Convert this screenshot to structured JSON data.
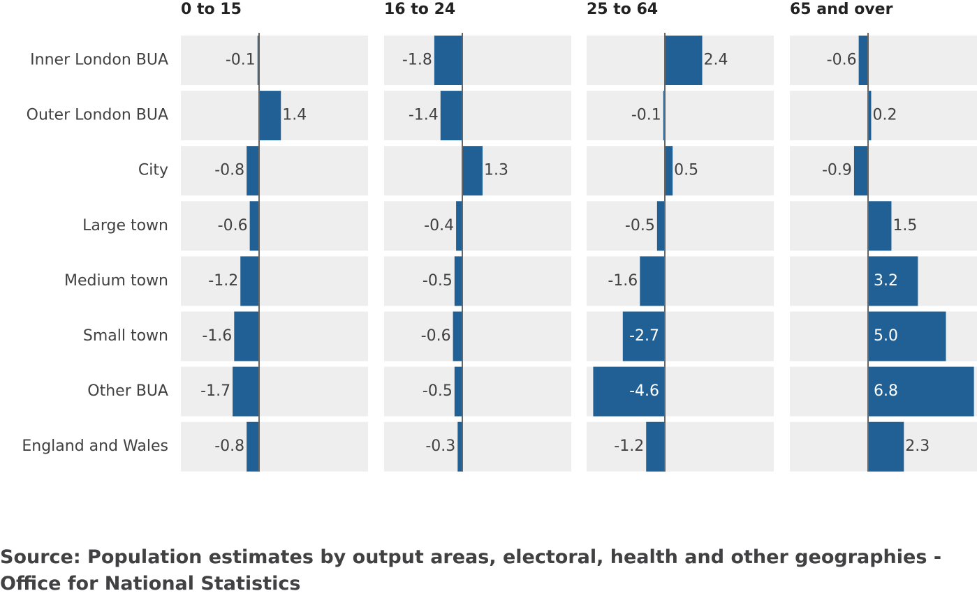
{
  "chart_data": {
    "type": "bar",
    "orientation": "horizontal",
    "categories": [
      "Inner London BUA",
      "Outer London BUA",
      "City",
      "Large town",
      "Medium town",
      "Small town",
      "Other BUA",
      "England and Wales"
    ],
    "series": [
      {
        "name": "0 to 15",
        "values": [
          -0.1,
          1.4,
          -0.8,
          -0.6,
          -1.2,
          -1.6,
          -1.7,
          -0.8
        ],
        "labels": [
          "-0.1",
          "1.4",
          "-0.8",
          "-0.6",
          "-1.2",
          "-1.6",
          "-1.7",
          "-0.8"
        ]
      },
      {
        "name": "16 to 24",
        "values": [
          -1.8,
          -1.4,
          1.3,
          -0.4,
          -0.5,
          -0.6,
          -0.5,
          -0.3
        ],
        "labels": [
          "-1.8",
          "-1.4",
          "1.3",
          "-0.4",
          "-0.5",
          "-0.6",
          "-0.5",
          "-0.3"
        ]
      },
      {
        "name": "25 to 64",
        "values": [
          2.4,
          -0.1,
          0.5,
          -0.5,
          -1.6,
          -2.7,
          -4.6,
          -1.2
        ],
        "labels": [
          "2.4",
          "-0.1",
          "0.5",
          "-0.5",
          "-1.6",
          "-2.7",
          "-4.6",
          "-1.2"
        ]
      },
      {
        "name": "65 and over",
        "values": [
          -0.6,
          0.2,
          -0.9,
          1.5,
          3.2,
          5.0,
          6.8,
          2.3
        ],
        "labels": [
          "-0.6",
          "0.2",
          "-0.9",
          "1.5",
          "3.2",
          "5.0",
          "6.8",
          "2.3"
        ]
      }
    ],
    "xlim": [
      -5,
      7
    ],
    "bar_color": "#206095",
    "panel_color": "#eeeeee",
    "zero_line_color": "#666666",
    "label_color_dark": "#414042",
    "label_color_light": "#ffffff",
    "facets": [
      "0 to 15",
      "16 to 24",
      "25 to 64",
      "65 and over"
    ]
  },
  "source": "Source: Population estimates by output areas, electoral, health and other geographies - Office for National Statistics"
}
